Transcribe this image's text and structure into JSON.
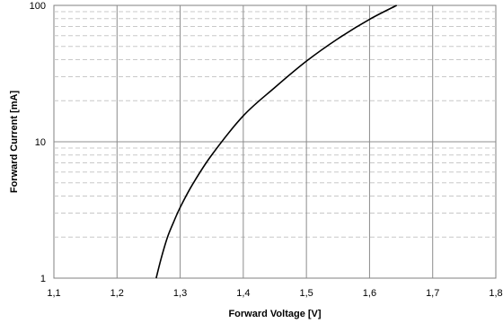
{
  "chart_data": {
    "type": "line",
    "title": "",
    "xlabel": "Forward Voltage [V]",
    "ylabel": "Forward Current [mA]",
    "xlim": [
      1.1,
      1.8
    ],
    "ylim": [
      1,
      100
    ],
    "y_scale": "log",
    "grid": true,
    "x_ticks": [
      "1,1",
      "1,2",
      "1,3",
      "1,4",
      "1,5",
      "1,6",
      "1,7",
      "1,8"
    ],
    "y_ticks": [
      "1",
      "10",
      "100"
    ],
    "series": [
      {
        "color": "#000000",
        "x": [
          1.262,
          1.27,
          1.28,
          1.29,
          1.3,
          1.32,
          1.35,
          1.4,
          1.45,
          1.5,
          1.55,
          1.6,
          1.643
        ],
        "y": [
          1.0,
          1.4,
          2.0,
          2.6,
          3.3,
          4.9,
          8.0,
          15.5,
          25,
          39,
          57,
          79,
          100
        ]
      }
    ]
  }
}
